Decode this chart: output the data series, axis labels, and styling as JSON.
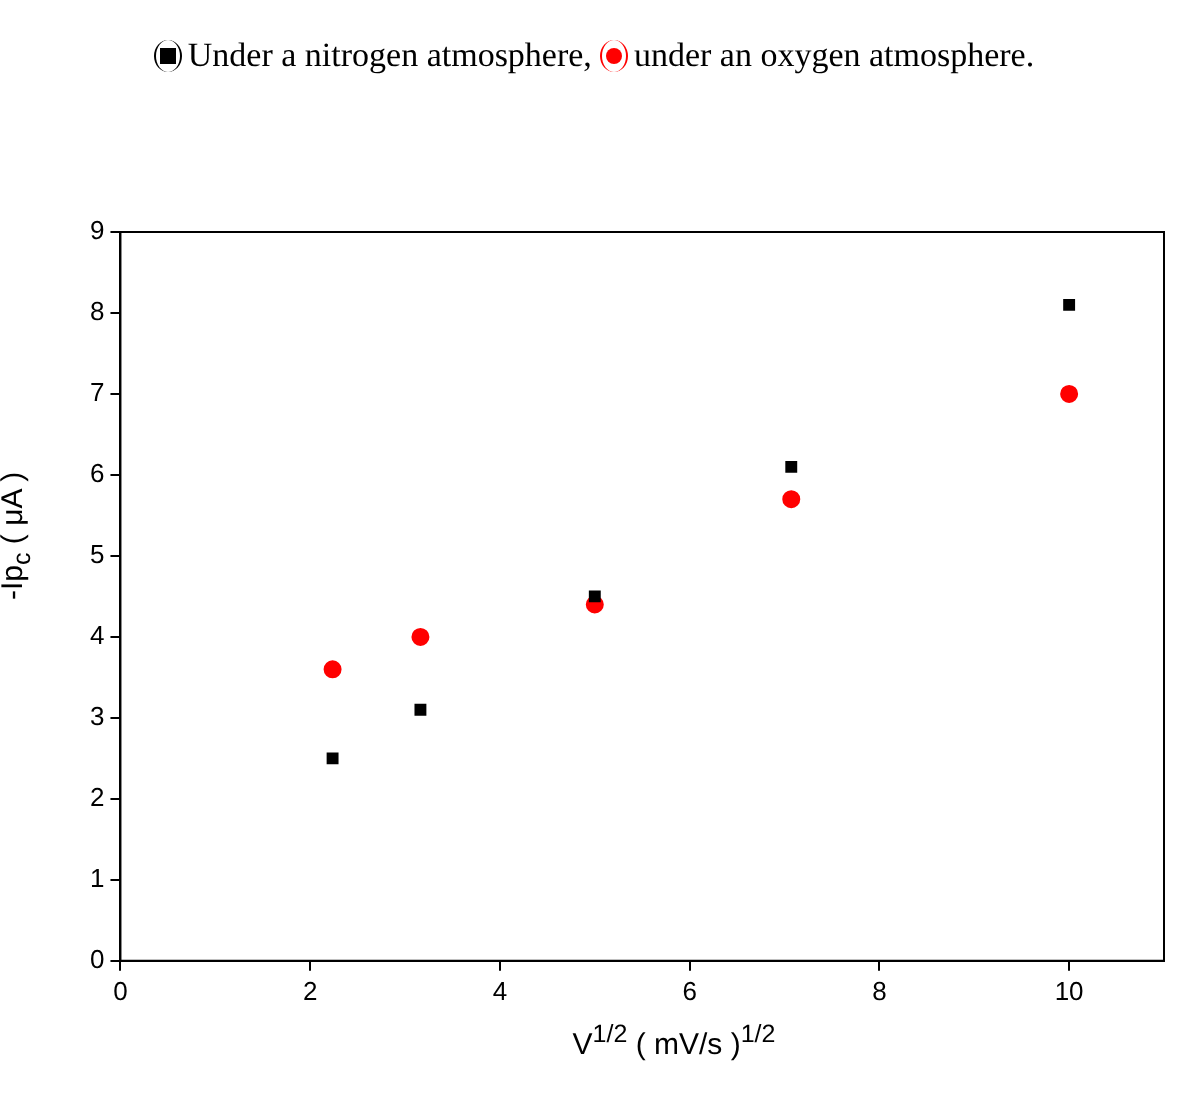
{
  "chart_data": {
    "type": "scatter",
    "xlabel": "V$^{1/2}$ ( mV/s )$^{1/2}$",
    "ylabel": "-Ip$_{c}$ ( μA )",
    "x": [
      2.236,
      3.162,
      5,
      7.071,
      10
    ],
    "series": [
      {
        "name": "Under a nitrogen atmosphere,",
        "color": "#000000",
        "marker": "square",
        "values": [
          2.5,
          3.1,
          4.5,
          6.1,
          8.1
        ]
      },
      {
        "name": "under an oxygen atmosphere.",
        "color": "#ff0000",
        "marker": "circle",
        "values": [
          3.6,
          4.0,
          4.4,
          5.7,
          7.0
        ]
      }
    ],
    "xlim": [
      0,
      11
    ],
    "xticks": [
      0,
      2,
      4,
      6,
      8,
      10
    ],
    "ylim": [
      0,
      9
    ],
    "yticks": [
      0,
      1,
      2,
      3,
      4,
      5,
      6,
      7,
      8,
      9
    ],
    "grid": false,
    "legend": "top"
  }
}
